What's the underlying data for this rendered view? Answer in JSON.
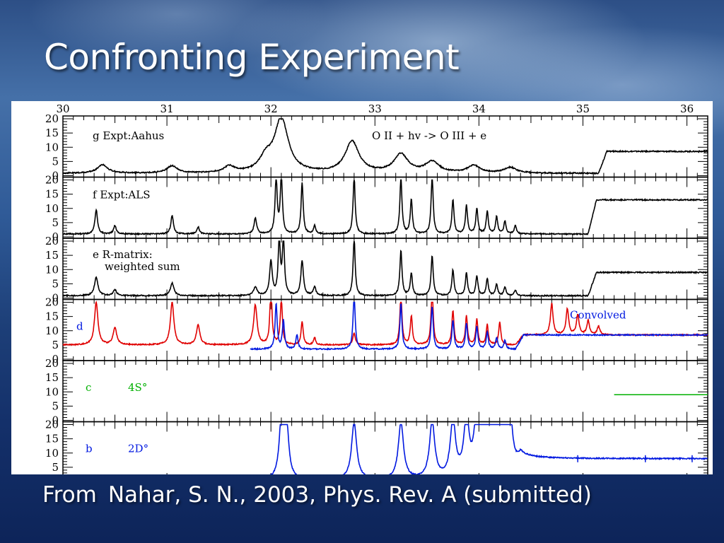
{
  "slide": {
    "title": "Confronting Experiment",
    "caption_lead": "From",
    "caption_ref": "Nahar, S. N., 2003, Phys. Rev. A (submitted)"
  },
  "chart_data": {
    "type": "line",
    "title": "",
    "xlabel": "",
    "ylabel": "",
    "xlim": [
      30,
      36.2
    ],
    "x_ticks": [
      "30",
      "31",
      "32",
      "33",
      "34",
      "35",
      "36"
    ],
    "y_ticks": [
      "20",
      "15",
      "10",
      "5",
      "0"
    ],
    "colors": {
      "black": "#000000",
      "red": "#e00000",
      "blue": "#0018e0",
      "green": "#00b000"
    },
    "panels": [
      {
        "id": "g",
        "ylim": [
          0,
          20
        ],
        "labels": [
          "g Expt:Aahus",
          "O II + hv -> O III + e"
        ],
        "series": [
          {
            "color": "black",
            "baseline": 0.8,
            "step": {
              "at": 35.15,
              "level": 8.5
            },
            "peaks": [
              [
                30.38,
                3.0,
                0.06
              ],
              [
                31.05,
                2.5,
                0.06
              ],
              [
                31.6,
                2.2,
                0.06
              ],
              [
                31.95,
                4.5,
                0.07
              ],
              [
                32.1,
                19.0,
                0.08
              ],
              [
                32.78,
                11.0,
                0.08
              ],
              [
                33.25,
                6.5,
                0.08
              ],
              [
                33.55,
                3.8,
                0.08
              ],
              [
                33.95,
                2.6,
                0.07
              ],
              [
                34.3,
                2.0,
                0.07
              ]
            ]
          }
        ]
      },
      {
        "id": "f",
        "ylim": [
          0,
          20
        ],
        "labels": [
          "f Expt:ALS"
        ],
        "series": [
          {
            "color": "black",
            "baseline": 1.0,
            "step": {
              "at": 35.05,
              "level": 13.0
            },
            "peaks": [
              [
                30.32,
                8.5,
                0.015
              ],
              [
                30.5,
                3.0,
                0.015
              ],
              [
                31.05,
                6.5,
                0.015
              ],
              [
                31.3,
                2.5,
                0.015
              ],
              [
                31.85,
                5.5,
                0.015
              ],
              [
                32.05,
                20.0,
                0.012
              ],
              [
                32.1,
                20.0,
                0.012
              ],
              [
                32.3,
                18.0,
                0.012
              ],
              [
                32.42,
                3.0,
                0.012
              ],
              [
                32.8,
                20.0,
                0.012
              ],
              [
                33.25,
                20.0,
                0.012
              ],
              [
                33.35,
                12.0,
                0.012
              ],
              [
                33.55,
                20.0,
                0.012
              ],
              [
                33.75,
                12.0,
                0.012
              ],
              [
                33.88,
                10.0,
                0.012
              ],
              [
                33.98,
                9.0,
                0.012
              ],
              [
                34.08,
                8.0,
                0.012
              ],
              [
                34.17,
                6.0,
                0.012
              ],
              [
                34.25,
                4.5,
                0.012
              ],
              [
                34.35,
                3.0,
                0.012
              ]
            ]
          }
        ]
      },
      {
        "id": "e",
        "ylim": [
          0,
          20
        ],
        "labels": [
          "e R-matrix:",
          "weighted sum"
        ],
        "series": [
          {
            "color": "black",
            "baseline": 0.8,
            "step": {
              "at": 35.05,
              "level": 9.0
            },
            "peaks": [
              [
                30.32,
                6.5,
                0.02
              ],
              [
                30.5,
                2.0,
                0.02
              ],
              [
                31.05,
                4.5,
                0.02
              ],
              [
                31.85,
                3.0,
                0.02
              ],
              [
                32.0,
                12.0,
                0.015
              ],
              [
                32.08,
                20.0,
                0.012
              ],
              [
                32.12,
                20.0,
                0.012
              ],
              [
                32.3,
                12.0,
                0.015
              ],
              [
                32.42,
                3.0,
                0.015
              ],
              [
                32.8,
                20.0,
                0.012
              ],
              [
                33.25,
                16.0,
                0.012
              ],
              [
                33.35,
                8.0,
                0.012
              ],
              [
                33.55,
                14.0,
                0.012
              ],
              [
                33.75,
                9.0,
                0.012
              ],
              [
                33.88,
                8.0,
                0.012
              ],
              [
                33.98,
                7.0,
                0.012
              ],
              [
                34.08,
                6.0,
                0.012
              ],
              [
                34.17,
                4.0,
                0.012
              ],
              [
                34.25,
                3.0,
                0.012
              ],
              [
                34.35,
                2.0,
                0.012
              ]
            ]
          }
        ]
      },
      {
        "id": "d",
        "ylim": [
          0,
          20
        ],
        "labels": [
          "d",
          "Convolved"
        ],
        "series": [
          {
            "color": "red",
            "baseline": 5.0,
            "step": {
              "at": 34.35,
              "level": 8.5
            },
            "peaks": [
              [
                30.32,
                15.0,
                0.02
              ],
              [
                30.5,
                6.0,
                0.02
              ],
              [
                31.05,
                15.0,
                0.02
              ],
              [
                31.3,
                7.0,
                0.02
              ],
              [
                31.85,
                14.0,
                0.02
              ],
              [
                32.0,
                20.0,
                0.012
              ],
              [
                32.1,
                16.0,
                0.012
              ],
              [
                32.3,
                8.0,
                0.012
              ],
              [
                32.42,
                2.5,
                0.012
              ],
              [
                32.8,
                4.0,
                0.015
              ],
              [
                33.25,
                18.0,
                0.012
              ],
              [
                33.35,
                10.0,
                0.012
              ],
              [
                33.55,
                20.0,
                0.012
              ],
              [
                33.75,
                12.0,
                0.012
              ],
              [
                33.88,
                10.0,
                0.012
              ],
              [
                33.98,
                9.0,
                0.012
              ],
              [
                34.08,
                7.0,
                0.012
              ],
              [
                34.2,
                8.0,
                0.012
              ],
              [
                34.7,
                11.0,
                0.015
              ],
              [
                34.85,
                9.0,
                0.015
              ],
              [
                34.95,
                7.0,
                0.015
              ],
              [
                35.05,
                5.0,
                0.015
              ],
              [
                35.15,
                3.0,
                0.015
              ]
            ]
          },
          {
            "color": "blue",
            "baseline": 3.5,
            "start": 31.8,
            "step": {
              "at": 34.35,
              "level": 8.5
            },
            "peaks": [
              [
                32.05,
                16.0,
                0.012
              ],
              [
                32.12,
                10.0,
                0.012
              ],
              [
                32.25,
                5.0,
                0.012
              ],
              [
                32.8,
                20.0,
                0.012
              ],
              [
                33.25,
                16.0,
                0.012
              ],
              [
                33.55,
                15.0,
                0.012
              ],
              [
                33.75,
                10.0,
                0.012
              ],
              [
                33.88,
                9.0,
                0.012
              ],
              [
                33.98,
                8.0,
                0.012
              ],
              [
                34.08,
                6.0,
                0.012
              ],
              [
                34.17,
                4.0,
                0.012
              ],
              [
                34.25,
                3.0,
                0.012
              ]
            ]
          }
        ]
      },
      {
        "id": "c",
        "ylim": [
          0,
          20
        ],
        "labels": [
          "c",
          "4S°"
        ],
        "series": [
          {
            "color": "green",
            "segment": [
              35.3,
              36.2
            ],
            "level": 9.0
          }
        ]
      },
      {
        "id": "b",
        "ylim": [
          0,
          20
        ],
        "labels": [
          "b",
          "2D°"
        ],
        "series": [
          {
            "color": "blue",
            "baseline": 0.5,
            "start": 31.85,
            "step": {
              "at": 34.32,
              "level": 8.0
            },
            "peaks": [
              [
                32.1,
                20.0,
                0.025
              ],
              [
                32.15,
                19.0,
                0.025
              ],
              [
                32.8,
                20.0,
                0.03
              ],
              [
                33.25,
                20.0,
                0.03
              ],
              [
                33.55,
                20.0,
                0.03
              ],
              [
                33.75,
                20.0,
                0.03
              ],
              [
                33.88,
                20.0,
                0.03
              ],
              [
                33.98,
                20.0,
                0.03
              ],
              [
                34.05,
                20.0,
                0.03
              ],
              [
                34.12,
                20.0,
                0.03
              ],
              [
                34.18,
                20.0,
                0.03
              ],
              [
                34.24,
                20.0,
                0.03
              ],
              [
                34.3,
                20.0,
                0.03
              ]
            ],
            "spikes": [
              34.95,
              35.6,
              36.05
            ]
          }
        ]
      }
    ]
  }
}
